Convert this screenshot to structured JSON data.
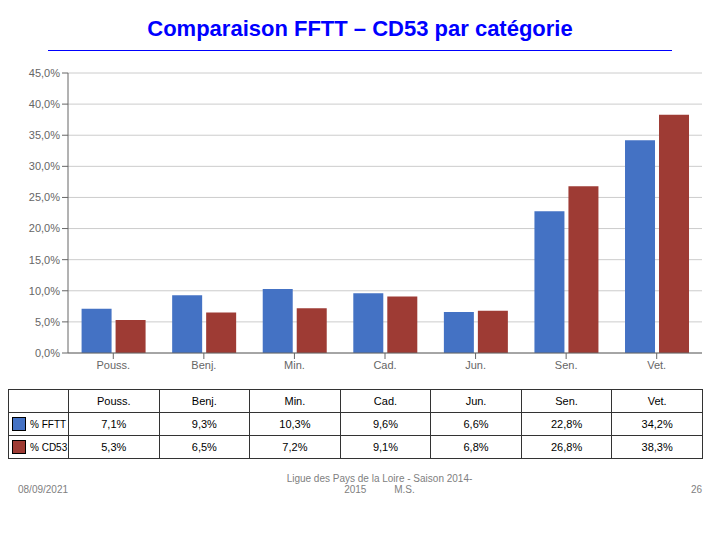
{
  "chart_data": {
    "type": "bar",
    "title": "Comparaison FFTT – CD53 par catégorie",
    "categories": [
      "Pouss.",
      "Benj.",
      "Min.",
      "Cad.",
      "Jun.",
      "Sen.",
      "Vet."
    ],
    "series": [
      {
        "name": "% FFTT",
        "color": "#4472C4",
        "values": [
          7.1,
          9.3,
          10.3,
          9.6,
          6.6,
          22.8,
          34.2
        ],
        "value_labels": [
          "7,1%",
          "9,3%",
          "10,3%",
          "9,6%",
          "6,6%",
          "22,8%",
          "34,2%"
        ]
      },
      {
        "name": "% CD53",
        "color": "#9E3B34",
        "values": [
          5.3,
          6.5,
          7.2,
          9.1,
          6.8,
          26.8,
          38.3
        ],
        "value_labels": [
          "5,3%",
          "6,5%",
          "7,2%",
          "9,1%",
          "6,8%",
          "26,8%",
          "38,3%"
        ]
      }
    ],
    "ylim": [
      0,
      45
    ],
    "yticks": [
      {
        "value": 0,
        "label": "0,0%"
      },
      {
        "value": 5,
        "label": "5,0%"
      },
      {
        "value": 10,
        "label": "10,0%"
      },
      {
        "value": 15,
        "label": "15,0%"
      },
      {
        "value": 20,
        "label": "20,0%"
      },
      {
        "value": 25,
        "label": "25,0%"
      },
      {
        "value": 30,
        "label": "30,0%"
      },
      {
        "value": 35,
        "label": "35,0%"
      },
      {
        "value": 40,
        "label": "40,0%"
      },
      {
        "value": 45,
        "label": "45,0%"
      }
    ],
    "grid": true,
    "annotations": [
      "08/09/2021",
      "Ligue des Pays de la Loire - Saison 2014-\n2015          M.S.",
      "26"
    ]
  }
}
